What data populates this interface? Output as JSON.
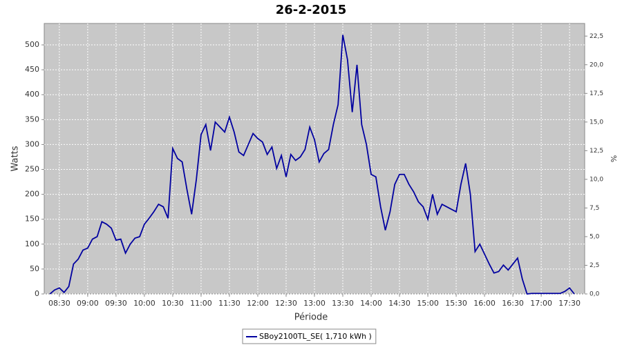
{
  "chart_data": {
    "type": "line",
    "title": "26-2-2015",
    "x_label": "Période",
    "y_label": "Watts",
    "y2_label": "%",
    "x": [
      "08:20",
      "08:25",
      "08:30",
      "08:35",
      "08:40",
      "08:45",
      "08:50",
      "08:55",
      "09:00",
      "09:05",
      "09:10",
      "09:15",
      "09:20",
      "09:25",
      "09:30",
      "09:35",
      "09:40",
      "09:45",
      "09:50",
      "09:55",
      "10:00",
      "10:05",
      "10:10",
      "10:15",
      "10:20",
      "10:25",
      "10:30",
      "10:35",
      "10:40",
      "10:45",
      "10:50",
      "10:55",
      "11:00",
      "11:05",
      "11:10",
      "11:15",
      "11:20",
      "11:25",
      "11:30",
      "11:35",
      "11:40",
      "11:45",
      "11:50",
      "11:55",
      "12:00",
      "12:05",
      "12:10",
      "12:15",
      "12:20",
      "12:25",
      "12:30",
      "12:35",
      "12:40",
      "12:45",
      "12:50",
      "12:55",
      "13:00",
      "13:05",
      "13:10",
      "13:15",
      "13:20",
      "13:25",
      "13:30",
      "13:35",
      "13:40",
      "13:45",
      "13:50",
      "13:55",
      "14:00",
      "14:05",
      "14:10",
      "14:15",
      "14:20",
      "14:25",
      "14:30",
      "14:35",
      "14:40",
      "14:45",
      "14:50",
      "14:55",
      "15:00",
      "15:05",
      "15:10",
      "15:15",
      "15:20",
      "15:25",
      "15:30",
      "15:35",
      "15:40",
      "15:45",
      "15:50",
      "15:55",
      "16:00",
      "16:05",
      "16:10",
      "16:15",
      "16:20",
      "16:25",
      "16:30",
      "16:35",
      "16:40",
      "16:45",
      "16:50",
      "16:55",
      "17:00",
      "17:05",
      "17:10",
      "17:15",
      "17:20",
      "17:25",
      "17:30",
      "17:35"
    ],
    "series": [
      {
        "name": "SBoy2100TL_SE( 1,710 kWh )",
        "color": "#0000a0",
        "values": [
          0,
          8,
          12,
          3,
          15,
          60,
          70,
          88,
          92,
          110,
          115,
          145,
          140,
          132,
          108,
          110,
          82,
          100,
          112,
          115,
          140,
          152,
          165,
          180,
          175,
          152,
          292,
          272,
          265,
          210,
          160,
          230,
          320,
          340,
          288,
          345,
          335,
          325,
          355,
          325,
          285,
          278,
          300,
          322,
          312,
          305,
          280,
          295,
          252,
          278,
          235,
          280,
          268,
          275,
          290,
          335,
          310,
          265,
          282,
          290,
          340,
          380,
          520,
          470,
          365,
          460,
          340,
          300,
          240,
          235,
          175,
          128,
          165,
          220,
          240,
          240,
          220,
          205,
          185,
          175,
          150,
          200,
          160,
          180,
          175,
          170,
          165,
          220,
          262,
          200,
          85,
          100,
          80,
          60,
          42,
          45,
          58,
          48,
          60,
          72,
          30,
          0,
          1,
          1,
          1,
          1,
          1,
          1,
          1,
          5,
          12,
          0
        ]
      }
    ],
    "xlim": [
      "08:14",
      "17:46"
    ],
    "xticks": [
      "08:30",
      "09:00",
      "09:30",
      "10:00",
      "10:30",
      "11:00",
      "11:30",
      "12:00",
      "12:30",
      "13:00",
      "13:30",
      "14:00",
      "14:30",
      "15:00",
      "15:30",
      "16:00",
      "16:30",
      "17:00",
      "17:30"
    ],
    "ylim": [
      0,
      543
    ],
    "yticks": [
      0,
      50,
      100,
      150,
      200,
      250,
      300,
      350,
      400,
      450,
      500
    ],
    "y2lim": [
      0,
      23.6
    ],
    "y2ticks": [
      {
        "value": 0,
        "label": "0,0"
      },
      {
        "value": 2.5,
        "label": "2,5"
      },
      {
        "value": 5,
        "label": "5,0"
      },
      {
        "value": 7.5,
        "label": "7,5"
      },
      {
        "value": 10,
        "label": "10,0"
      },
      {
        "value": 12.5,
        "label": "12,5"
      },
      {
        "value": 15,
        "label": "15,0"
      },
      {
        "value": 17.5,
        "label": "17,5"
      },
      {
        "value": 20,
        "label": "20,0"
      },
      {
        "value": 22.5,
        "label": "22,5"
      }
    ],
    "grid": true,
    "legend": "bottom",
    "background": "#c8c8c8"
  }
}
